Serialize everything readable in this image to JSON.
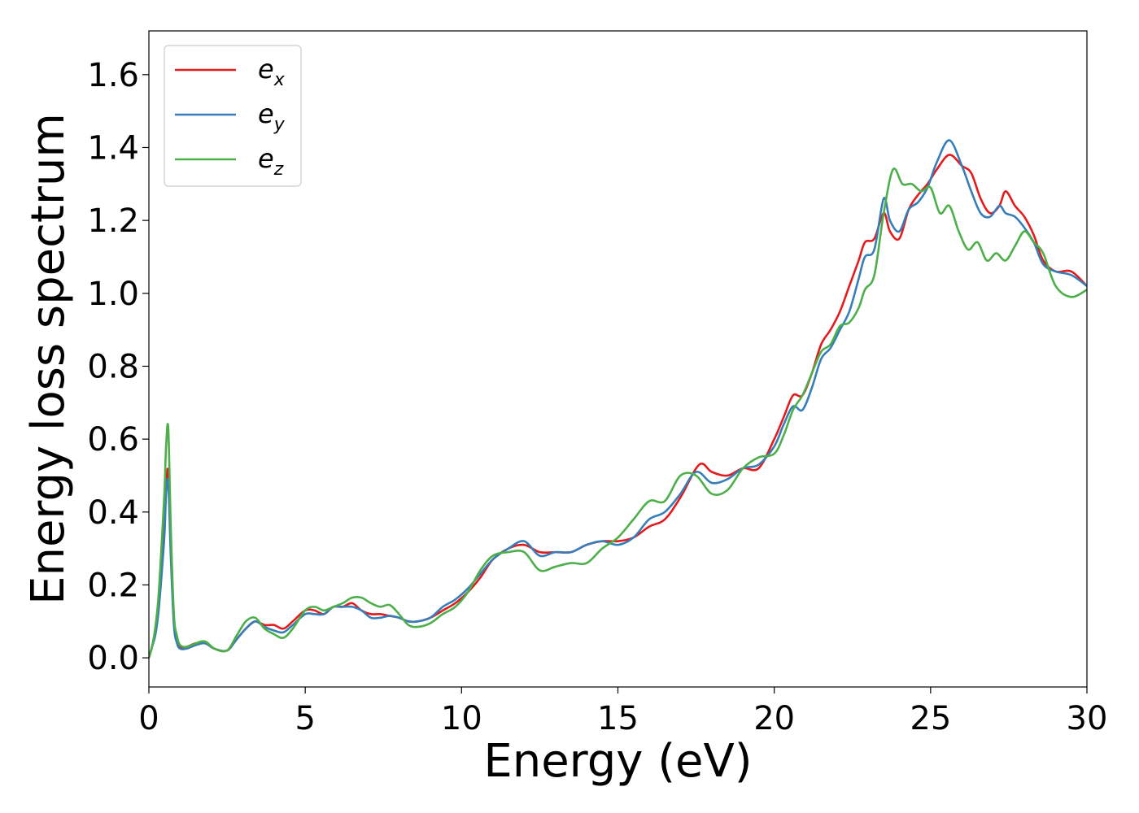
{
  "chart_data": {
    "type": "line",
    "xlabel": "Energy (eV)",
    "ylabel": "Energy loss spectrum",
    "xlim": [
      0,
      30
    ],
    "ylim": [
      -0.08,
      1.72
    ],
    "xticks": [
      "0",
      "5",
      "10",
      "15",
      "20",
      "25",
      "30"
    ],
    "yticks": [
      "0.0",
      "0.2",
      "0.4",
      "0.6",
      "0.8",
      "1.0",
      "1.2",
      "1.4",
      "1.6"
    ],
    "grid": false,
    "legend_position": "top-left",
    "series": [
      {
        "name": "e",
        "subscript": "x",
        "color": "#e41a1c",
        "x": [
          0,
          0.1,
          0.2,
          0.3,
          0.4,
          0.5,
          0.55,
          0.62,
          0.7,
          0.8,
          0.9,
          1.0,
          1.2,
          1.5,
          1.8,
          2.1,
          2.5,
          2.8,
          3.1,
          3.4,
          3.7,
          4.0,
          4.3,
          4.6,
          5.0,
          5.3,
          5.6,
          5.9,
          6.2,
          6.5,
          6.8,
          7.1,
          7.4,
          7.7,
          8.0,
          8.3,
          8.6,
          9.0,
          9.4,
          9.8,
          10.2,
          10.6,
          11.0,
          11.5,
          12.0,
          12.5,
          13.0,
          13.5,
          14.0,
          14.5,
          15.0,
          15.5,
          16.0,
          16.5,
          17.0,
          17.6,
          18.0,
          18.5,
          19.0,
          19.5,
          20.0,
          20.3,
          20.6,
          20.9,
          21.2,
          21.5,
          21.8,
          22.1,
          22.4,
          22.7,
          22.9,
          23.2,
          23.5,
          23.7,
          24.0,
          24.3,
          24.6,
          24.9,
          25.2,
          25.6,
          26.0,
          26.3,
          26.6,
          26.9,
          27.2,
          27.4,
          27.7,
          28.0,
          28.3,
          28.6,
          29.0,
          29.5,
          30.0
        ],
        "y": [
          0.0,
          0.03,
          0.07,
          0.13,
          0.25,
          0.38,
          0.47,
          0.51,
          0.3,
          0.1,
          0.05,
          0.03,
          0.03,
          0.04,
          0.04,
          0.025,
          0.02,
          0.05,
          0.08,
          0.1,
          0.09,
          0.09,
          0.08,
          0.1,
          0.13,
          0.13,
          0.12,
          0.14,
          0.14,
          0.15,
          0.13,
          0.12,
          0.12,
          0.115,
          0.11,
          0.1,
          0.1,
          0.11,
          0.13,
          0.15,
          0.18,
          0.22,
          0.27,
          0.3,
          0.31,
          0.29,
          0.29,
          0.29,
          0.31,
          0.32,
          0.32,
          0.33,
          0.36,
          0.38,
          0.44,
          0.53,
          0.51,
          0.5,
          0.52,
          0.52,
          0.6,
          0.66,
          0.72,
          0.72,
          0.78,
          0.86,
          0.9,
          0.95,
          1.02,
          1.09,
          1.14,
          1.15,
          1.22,
          1.17,
          1.15,
          1.23,
          1.27,
          1.3,
          1.34,
          1.38,
          1.35,
          1.33,
          1.26,
          1.22,
          1.24,
          1.28,
          1.24,
          1.21,
          1.16,
          1.09,
          1.06,
          1.06,
          1.02
        ]
      },
      {
        "name": "e",
        "subscript": "y",
        "color": "#377eb8",
        "x": [
          0,
          0.1,
          0.2,
          0.3,
          0.4,
          0.5,
          0.55,
          0.62,
          0.7,
          0.8,
          0.9,
          1.0,
          1.2,
          1.5,
          1.8,
          2.1,
          2.5,
          2.8,
          3.1,
          3.4,
          3.7,
          4.0,
          4.3,
          4.6,
          5.0,
          5.3,
          5.6,
          5.9,
          6.2,
          6.5,
          6.8,
          7.1,
          7.4,
          7.7,
          8.0,
          8.3,
          8.6,
          9.0,
          9.4,
          9.8,
          10.2,
          10.6,
          11.0,
          11.5,
          12.0,
          12.5,
          13.0,
          13.5,
          14.0,
          14.5,
          15.0,
          15.5,
          16.0,
          16.5,
          17.0,
          17.5,
          18.0,
          18.5,
          19.0,
          19.5,
          20.0,
          20.3,
          20.6,
          20.9,
          21.2,
          21.5,
          21.8,
          22.1,
          22.4,
          22.7,
          22.9,
          23.2,
          23.5,
          23.7,
          24.0,
          24.3,
          24.6,
          24.9,
          25.2,
          25.6,
          26.0,
          26.3,
          26.6,
          26.9,
          27.2,
          27.4,
          27.7,
          28.0,
          28.3,
          28.6,
          29.0,
          29.5,
          30.0
        ],
        "y": [
          0.0,
          0.03,
          0.06,
          0.12,
          0.22,
          0.34,
          0.45,
          0.48,
          0.28,
          0.09,
          0.04,
          0.025,
          0.025,
          0.035,
          0.04,
          0.025,
          0.02,
          0.05,
          0.08,
          0.1,
          0.085,
          0.075,
          0.07,
          0.09,
          0.12,
          0.12,
          0.12,
          0.14,
          0.14,
          0.14,
          0.13,
          0.11,
          0.11,
          0.115,
          0.11,
          0.1,
          0.1,
          0.11,
          0.14,
          0.16,
          0.19,
          0.23,
          0.27,
          0.3,
          0.32,
          0.28,
          0.29,
          0.29,
          0.31,
          0.32,
          0.31,
          0.33,
          0.38,
          0.4,
          0.45,
          0.51,
          0.48,
          0.49,
          0.52,
          0.53,
          0.58,
          0.64,
          0.69,
          0.68,
          0.74,
          0.82,
          0.85,
          0.9,
          0.95,
          1.04,
          1.1,
          1.12,
          1.26,
          1.2,
          1.17,
          1.23,
          1.25,
          1.29,
          1.36,
          1.42,
          1.35,
          1.28,
          1.22,
          1.21,
          1.24,
          1.22,
          1.21,
          1.18,
          1.14,
          1.08,
          1.06,
          1.05,
          1.02
        ]
      },
      {
        "name": "e",
        "subscript": "z",
        "color": "#4daf4a",
        "x": [
          0,
          0.1,
          0.2,
          0.3,
          0.4,
          0.5,
          0.55,
          0.62,
          0.7,
          0.8,
          0.9,
          1.0,
          1.2,
          1.5,
          1.8,
          2.1,
          2.5,
          2.8,
          3.1,
          3.4,
          3.7,
          4.0,
          4.3,
          4.6,
          5.0,
          5.3,
          5.6,
          5.9,
          6.2,
          6.5,
          6.8,
          7.1,
          7.4,
          7.7,
          8.0,
          8.3,
          8.6,
          9.0,
          9.4,
          9.8,
          10.2,
          10.6,
          11.0,
          11.5,
          12.0,
          12.5,
          13.0,
          13.5,
          14.0,
          14.5,
          15.0,
          15.5,
          16.0,
          16.5,
          17.0,
          17.5,
          18.0,
          18.5,
          19.0,
          19.5,
          20.0,
          20.3,
          20.6,
          20.9,
          21.2,
          21.5,
          21.8,
          22.1,
          22.4,
          22.7,
          22.9,
          23.2,
          23.5,
          23.8,
          24.1,
          24.4,
          24.7,
          25.0,
          25.3,
          25.6,
          25.9,
          26.2,
          26.5,
          26.8,
          27.1,
          27.4,
          27.7,
          28.0,
          28.3,
          28.6,
          29.0,
          29.5,
          30.0
        ],
        "y": [
          0.0,
          0.03,
          0.08,
          0.16,
          0.3,
          0.46,
          0.58,
          0.63,
          0.36,
          0.12,
          0.06,
          0.035,
          0.03,
          0.04,
          0.045,
          0.025,
          0.02,
          0.06,
          0.1,
          0.11,
          0.08,
          0.065,
          0.055,
          0.08,
          0.13,
          0.14,
          0.13,
          0.14,
          0.15,
          0.165,
          0.165,
          0.15,
          0.14,
          0.145,
          0.12,
          0.09,
          0.085,
          0.095,
          0.12,
          0.14,
          0.18,
          0.24,
          0.28,
          0.29,
          0.29,
          0.24,
          0.25,
          0.26,
          0.26,
          0.3,
          0.33,
          0.38,
          0.43,
          0.43,
          0.5,
          0.5,
          0.45,
          0.46,
          0.52,
          0.55,
          0.56,
          0.61,
          0.68,
          0.72,
          0.78,
          0.84,
          0.86,
          0.91,
          0.92,
          0.96,
          1.01,
          1.05,
          1.22,
          1.34,
          1.3,
          1.3,
          1.28,
          1.29,
          1.22,
          1.24,
          1.17,
          1.12,
          1.14,
          1.09,
          1.11,
          1.09,
          1.13,
          1.17,
          1.14,
          1.11,
          1.02,
          0.99,
          1.01
        ]
      }
    ]
  }
}
